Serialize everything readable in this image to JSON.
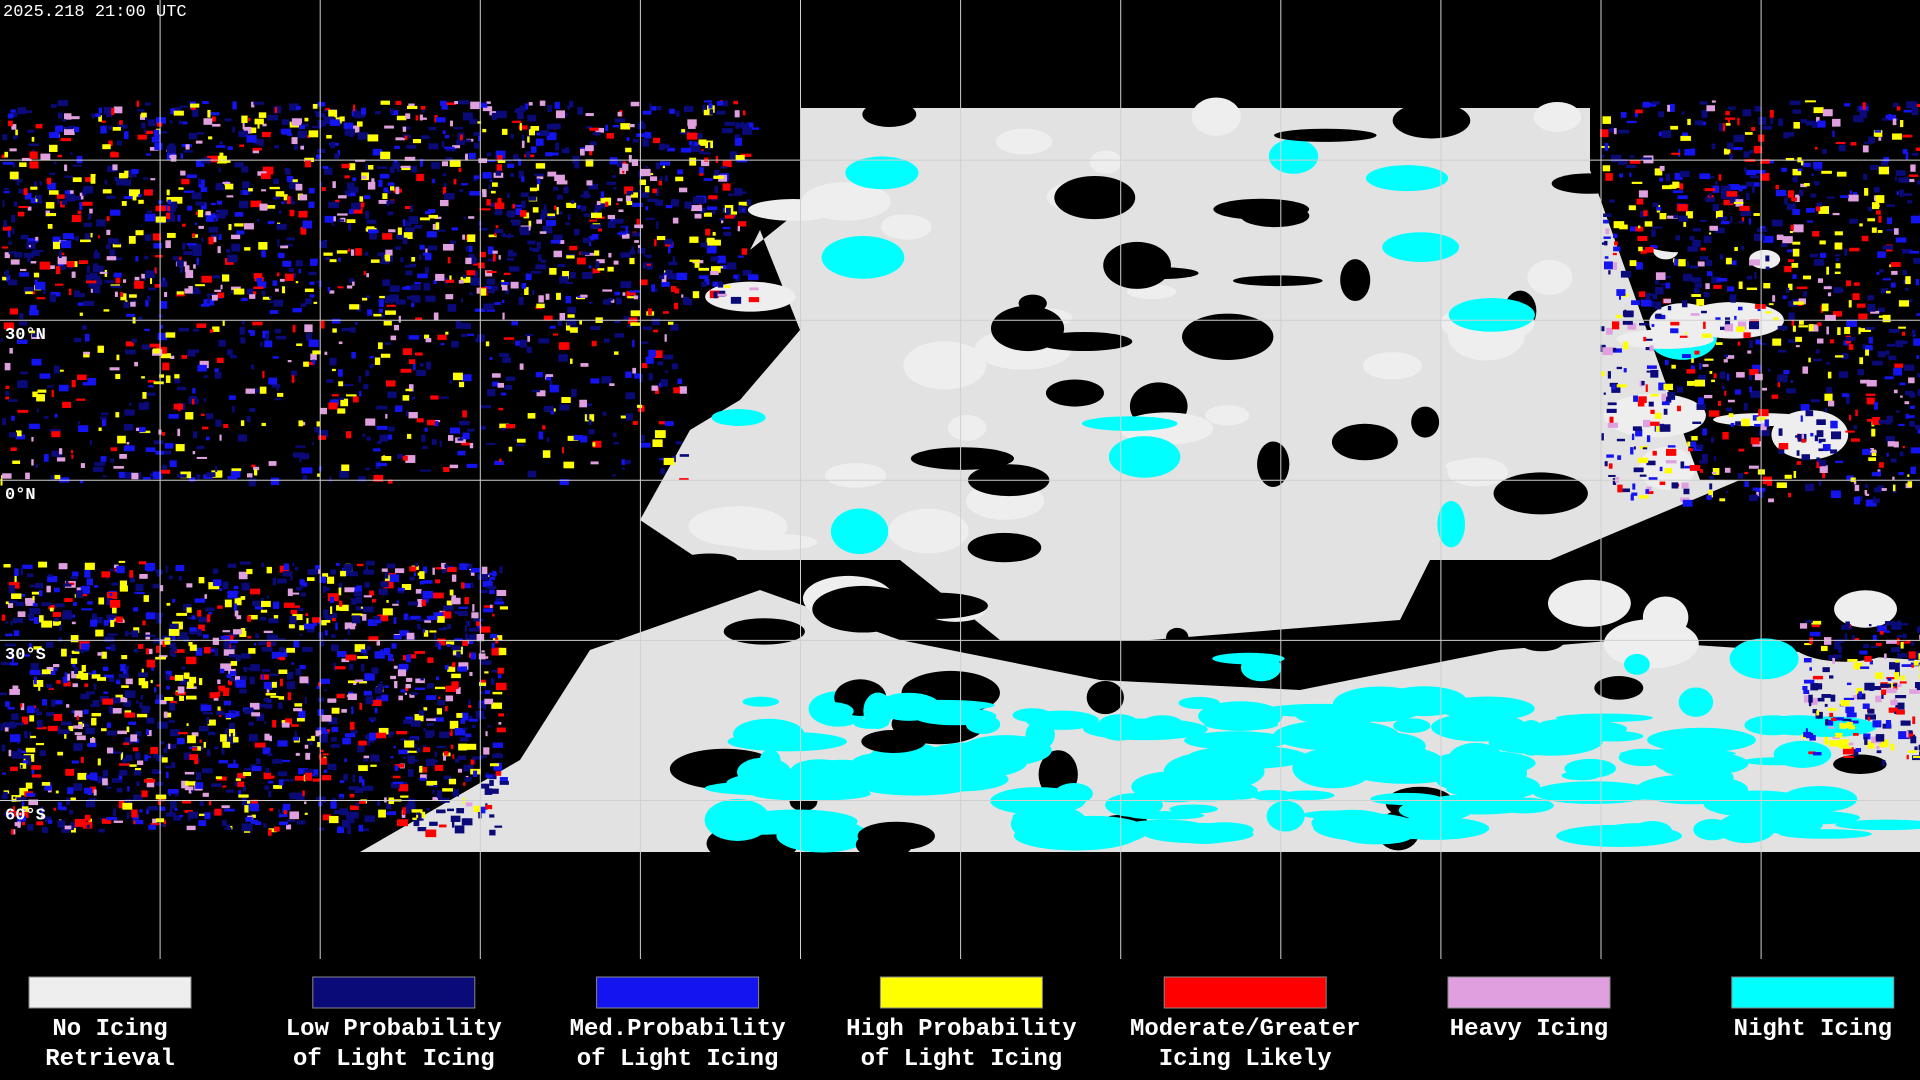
{
  "header": {
    "timestamp": "2025.218 21:00 UTC"
  },
  "map": {
    "latitude_labels": [
      "30°N",
      "0°N",
      "30°S",
      "60°S"
    ]
  },
  "legend": {
    "items": [
      {
        "label_lines": [
          "No Icing",
          "Retrieval"
        ],
        "color": "#eeeeee"
      },
      {
        "label_lines": [
          "Low Probability",
          "of Light Icing"
        ],
        "color": "#0a0a78"
      },
      {
        "label_lines": [
          "Med.Probability",
          "of Light Icing"
        ],
        "color": "#1414f0"
      },
      {
        "label_lines": [
          "High Probability",
          "of Light Icing"
        ],
        "color": "#ffff00"
      },
      {
        "label_lines": [
          "Moderate/Greater",
          "Icing Likely"
        ],
        "color": "#ff0000"
      },
      {
        "label_lines": [
          "Heavy Icing"
        ],
        "color": "#e0a0e0"
      },
      {
        "label_lines": [
          "Night Icing"
        ],
        "color": "#00ffff"
      }
    ]
  }
}
